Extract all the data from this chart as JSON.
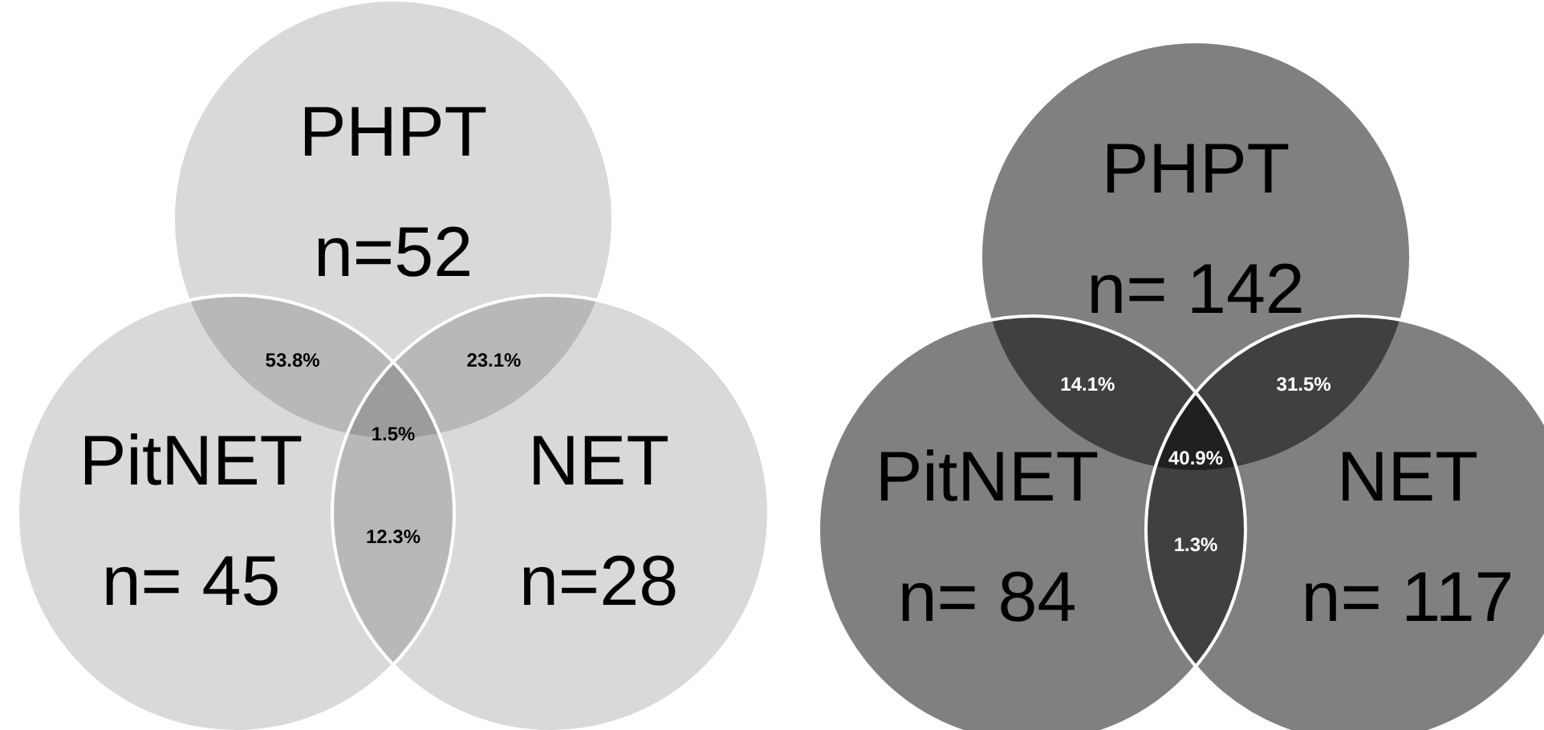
{
  "chart_data": [
    {
      "type": "other",
      "categories": [
        "PHPT",
        "PitNET",
        "NET"
      ],
      "values": [
        52,
        45,
        28
      ],
      "value_labels": [
        "n=52",
        "n= 45",
        "n=28"
      ],
      "colors": [
        "#d9d9d9",
        "#d9d9d9",
        "#d9d9d9"
      ],
      "annotations": [
        "53.8%",
        "23.1%",
        "1.5%",
        "12.3%"
      ]
    },
    {
      "type": "other",
      "categories": [
        "PHPT",
        "PitNET",
        "NET"
      ],
      "values": [
        142,
        84,
        117
      ],
      "value_labels": [
        "n= 142",
        "n= 84",
        "n= 117"
      ],
      "colors": [
        "#808080",
        "#808080",
        "#808080"
      ],
      "annotations": [
        "14.1%",
        "31.5%",
        "40.9%",
        "1.3%"
      ]
    }
  ]
}
